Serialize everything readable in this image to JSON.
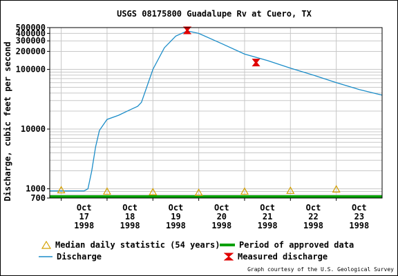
{
  "chart_data": {
    "type": "line",
    "title": "USGS 08175800 Guadalupe Rv at Cuero, TX",
    "ylabel": "Discharge, cubic feet per second",
    "xlabel": "",
    "y_scale": "log",
    "ylim": [
      700,
      500000
    ],
    "xlim": [
      "1998-10-16T18:00",
      "1998-10-24T00:00"
    ],
    "y_ticks": [
      {
        "value": 700,
        "label": "700"
      },
      {
        "value": 1000,
        "label": "1000"
      },
      {
        "value": 10000,
        "label": "10000"
      },
      {
        "value": 100000,
        "label": "100000"
      },
      {
        "value": 200000,
        "label": "200000"
      },
      {
        "value": 300000,
        "label": "300000"
      },
      {
        "value": 400000,
        "label": "400000"
      },
      {
        "value": 500000,
        "label": "500000"
      }
    ],
    "x_ticks": [
      {
        "value": "1998-10-17T00:00",
        "label": [
          "Oct",
          "17",
          "1998"
        ]
      },
      {
        "value": "1998-10-18T00:00",
        "label": [
          "Oct",
          "18",
          "1998"
        ]
      },
      {
        "value": "1998-10-19T00:00",
        "label": [
          "Oct",
          "19",
          "1998"
        ]
      },
      {
        "value": "1998-10-20T00:00",
        "label": [
          "Oct",
          "20",
          "1998"
        ]
      },
      {
        "value": "1998-10-21T00:00",
        "label": [
          "Oct",
          "21",
          "1998"
        ]
      },
      {
        "value": "1998-10-22T00:00",
        "label": [
          "Oct",
          "22",
          "1998"
        ]
      },
      {
        "value": "1998-10-23T00:00",
        "label": [
          "Oct",
          "23",
          "1998"
        ]
      }
    ],
    "grid": true,
    "series": [
      {
        "name": "Discharge",
        "color": "#1a8cc8",
        "points": [
          [
            "1998-10-16T18:00",
            920
          ],
          [
            "1998-10-17T12:00",
            920
          ],
          [
            "1998-10-17T14:00",
            1000
          ],
          [
            "1998-10-17T16:00",
            2000
          ],
          [
            "1998-10-17T18:00",
            5000
          ],
          [
            "1998-10-17T20:00",
            9500
          ],
          [
            "1998-10-18T00:00",
            14500
          ],
          [
            "1998-10-18T06:00",
            17000
          ],
          [
            "1998-10-18T12:00",
            21000
          ],
          [
            "1998-10-18T16:00",
            24000
          ],
          [
            "1998-10-18T18:00",
            28000
          ],
          [
            "1998-10-19T00:00",
            100000
          ],
          [
            "1998-10-19T06:00",
            230000
          ],
          [
            "1998-10-19T12:00",
            360000
          ],
          [
            "1998-10-19T18:00",
            440000
          ],
          [
            "1998-10-20T00:00",
            400000
          ],
          [
            "1998-10-20T12:00",
            270000
          ],
          [
            "1998-10-21T00:00",
            180000
          ],
          [
            "1998-10-21T12:00",
            140000
          ],
          [
            "1998-10-22T00:00",
            105000
          ],
          [
            "1998-10-22T12:00",
            80000
          ],
          [
            "1998-10-23T00:00",
            60000
          ],
          [
            "1998-10-23T12:00",
            46000
          ],
          [
            "1998-10-24T00:00",
            37000
          ]
        ]
      },
      {
        "name": "Median daily statistic (54 years)",
        "color": "#d4a000",
        "points": [
          [
            "1998-10-17T00:00",
            950
          ],
          [
            "1998-10-18T00:00",
            900
          ],
          [
            "1998-10-19T00:00",
            880
          ],
          [
            "1998-10-20T00:00",
            860
          ],
          [
            "1998-10-21T00:00",
            900
          ],
          [
            "1998-10-22T00:00",
            930
          ],
          [
            "1998-10-23T00:00",
            980
          ]
        ]
      },
      {
        "name": "Measured discharge",
        "color": "#e00000",
        "points": [
          [
            "1998-10-19T18:00",
            450000
          ],
          [
            "1998-10-21T06:00",
            130000
          ]
        ]
      }
    ],
    "approved_period": {
      "name": "Period of approved data",
      "color": "#00a000",
      "from": "1998-10-16T18:00",
      "to": "1998-10-24T00:00"
    },
    "legend": {
      "placement": "bottom",
      "items": [
        {
          "label": "Median daily statistic (54 years)",
          "symbol": "triangle-icon"
        },
        {
          "label": "Period of approved data",
          "symbol": "green-bar-icon"
        },
        {
          "label": "Discharge",
          "symbol": "blue-line-icon"
        },
        {
          "label": "Measured discharge",
          "symbol": "red-hourglass-icon"
        }
      ]
    }
  },
  "credit": "Graph courtesy of the U.S. Geological Survey"
}
